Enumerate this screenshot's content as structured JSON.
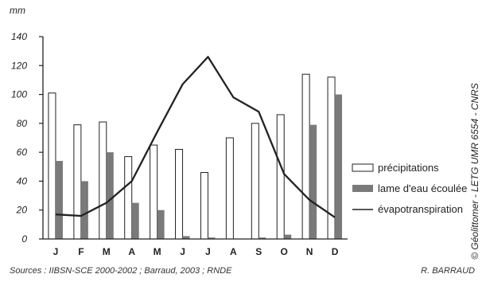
{
  "chart_data": {
    "type": "bar+line",
    "ylabel": "mm",
    "ylim": [
      0,
      140
    ],
    "yticks": [
      0,
      20,
      40,
      60,
      80,
      100,
      120,
      140
    ],
    "categories": [
      "J",
      "F",
      "M",
      "A",
      "M",
      "J",
      "J",
      "A",
      "S",
      "O",
      "N",
      "D"
    ],
    "series": [
      {
        "name": "précipitations",
        "kind": "bar",
        "values": [
          101,
          79,
          81,
          57,
          65,
          62,
          46,
          70,
          80,
          86,
          114,
          112
        ],
        "color": "#ffffff",
        "stroke": "#222222"
      },
      {
        "name": "lame d'eau écoulée",
        "kind": "bar",
        "values": [
          54,
          40,
          60,
          25,
          20,
          2,
          1,
          0,
          1,
          3,
          79,
          100
        ],
        "color": "#7a7a7a"
      },
      {
        "name": "évapotranspiration",
        "kind": "line",
        "values": [
          17,
          16,
          25,
          40,
          74,
          107,
          126,
          98,
          88,
          45,
          27,
          15
        ],
        "color": "#222222"
      }
    ],
    "legend": {
      "position": "right"
    }
  },
  "credit": "© Géolittomer - LETG UMR 6554 - CNRS",
  "source": "Sources : IIBSN-SCE 2000-2002 ; Barraud, 2003 ; RNDE",
  "author": "R. BARRAUD"
}
